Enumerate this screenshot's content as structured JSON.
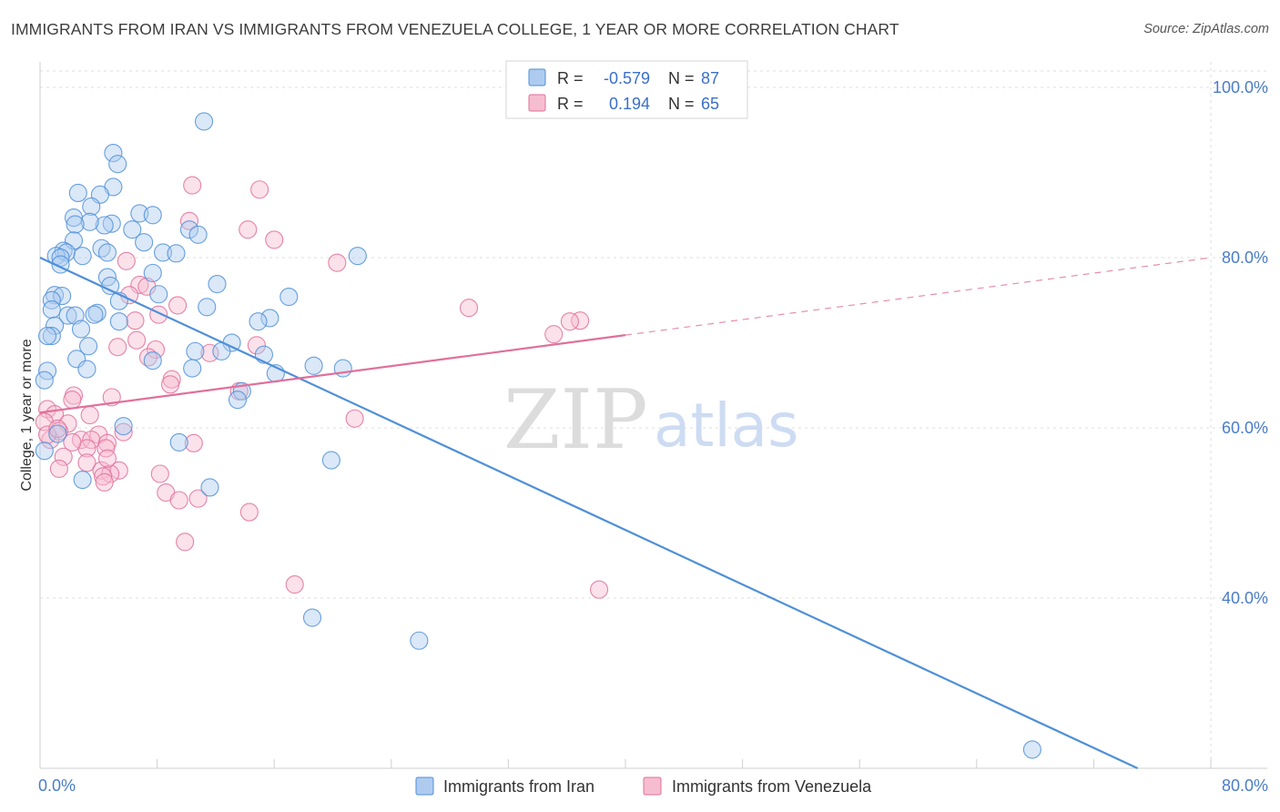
{
  "header": {
    "title": "IMMIGRANTS FROM IRAN VS IMMIGRANTS FROM VENEZUELA COLLEGE, 1 YEAR OR MORE CORRELATION CHART",
    "source": "Source: ZipAtlas.com"
  },
  "watermark": {
    "zip": "ZIP",
    "atlas": "atlas"
  },
  "legend_box": {
    "rows": [
      {
        "r_label": "R =",
        "r_value": "-0.579",
        "n_label": "N =",
        "n_value": "87"
      },
      {
        "r_label": "R =",
        "r_value": "0.194",
        "n_label": "N =",
        "n_value": "65"
      }
    ]
  },
  "colors": {
    "iran": "#4f8fd8",
    "iran_fill": "#aecbef",
    "venezuela": "#e0709a",
    "venezuela_fill": "#f6bdd0",
    "grid": "#dedede",
    "tick_text": "#4a7cc9"
  },
  "chart_data": {
    "type": "scatter",
    "title": "IMMIGRANTS FROM IRAN VS IMMIGRANTS FROM VENEZUELA COLLEGE, 1 YEAR OR MORE CORRELATION CHART",
    "xlabel": "",
    "ylabel": "College, 1 year or more",
    "xlim": [
      0,
      80
    ],
    "ylim": [
      20,
      103
    ],
    "x_tick_labels": [
      "0.0%",
      "80.0%"
    ],
    "y_tick_labels": [
      "100.0%",
      "80.0%",
      "60.0%",
      "40.0%"
    ],
    "y_ticks": [
      100,
      80,
      60,
      40
    ],
    "grid": true,
    "legend_position": "bottom",
    "series": [
      {
        "name": "Immigrants from Iran",
        "color": "#4f8fd8",
        "R": -0.579,
        "N": 87,
        "trend": {
          "x0": 0,
          "y0": 80.0,
          "x1": 80,
          "y1": 16.0,
          "solid_until": 80
        },
        "points": [
          [
            11.2,
            96.0
          ],
          [
            5.0,
            92.3
          ],
          [
            5.3,
            91.0
          ],
          [
            5.0,
            88.3
          ],
          [
            2.6,
            87.6
          ],
          [
            4.1,
            87.4
          ],
          [
            3.5,
            86.0
          ],
          [
            6.8,
            85.2
          ],
          [
            7.7,
            85.0
          ],
          [
            2.3,
            84.7
          ],
          [
            4.9,
            84.0
          ],
          [
            4.4,
            83.8
          ],
          [
            3.4,
            84.2
          ],
          [
            2.4,
            83.9
          ],
          [
            6.3,
            83.3
          ],
          [
            10.2,
            83.3
          ],
          [
            10.8,
            82.7
          ],
          [
            2.3,
            82.0
          ],
          [
            7.1,
            81.8
          ],
          [
            4.2,
            81.1
          ],
          [
            1.6,
            80.8
          ],
          [
            1.8,
            80.6
          ],
          [
            4.6,
            80.6
          ],
          [
            8.4,
            80.6
          ],
          [
            9.3,
            80.5
          ],
          [
            2.9,
            80.2
          ],
          [
            1.1,
            80.2
          ],
          [
            1.4,
            80.0
          ],
          [
            21.7,
            80.2
          ],
          [
            1.4,
            79.2
          ],
          [
            7.7,
            78.2
          ],
          [
            4.6,
            77.7
          ],
          [
            12.1,
            76.9
          ],
          [
            4.8,
            76.7
          ],
          [
            8.1,
            75.7
          ],
          [
            17.0,
            75.4
          ],
          [
            1.0,
            75.6
          ],
          [
            1.5,
            75.5
          ],
          [
            0.8,
            75.0
          ],
          [
            5.4,
            74.9
          ],
          [
            11.4,
            74.2
          ],
          [
            0.8,
            73.9
          ],
          [
            1.9,
            73.2
          ],
          [
            2.4,
            73.2
          ],
          [
            3.9,
            73.5
          ],
          [
            3.7,
            73.3
          ],
          [
            15.7,
            72.9
          ],
          [
            14.9,
            72.5
          ],
          [
            5.4,
            72.5
          ],
          [
            1.0,
            72.0
          ],
          [
            2.8,
            71.6
          ],
          [
            0.8,
            70.8
          ],
          [
            0.5,
            70.8
          ],
          [
            13.1,
            70.0
          ],
          [
            3.3,
            69.6
          ],
          [
            12.4,
            69.0
          ],
          [
            10.6,
            69.0
          ],
          [
            15.3,
            68.6
          ],
          [
            2.5,
            68.1
          ],
          [
            7.7,
            67.9
          ],
          [
            18.7,
            67.3
          ],
          [
            20.7,
            67.0
          ],
          [
            3.2,
            66.9
          ],
          [
            10.4,
            67.0
          ],
          [
            0.5,
            66.7
          ],
          [
            16.1,
            66.4
          ],
          [
            0.3,
            65.6
          ],
          [
            13.8,
            64.3
          ],
          [
            13.5,
            63.3
          ],
          [
            1.2,
            59.3
          ],
          [
            5.7,
            60.2
          ],
          [
            9.5,
            58.3
          ],
          [
            19.9,
            56.2
          ],
          [
            0.3,
            57.3
          ],
          [
            2.9,
            53.9
          ],
          [
            11.6,
            53.0
          ],
          [
            18.6,
            37.7
          ],
          [
            25.9,
            35.0
          ],
          [
            67.8,
            22.2
          ]
        ]
      },
      {
        "name": "Immigrants from Venezuela",
        "color": "#e0709a",
        "R": 0.194,
        "N": 65,
        "trend": {
          "x0": 0,
          "y0": 61.8,
          "x1": 80,
          "y1": 80.0,
          "solid_until": 40
        },
        "points": [
          [
            10.4,
            88.5
          ],
          [
            15.0,
            88.0
          ],
          [
            10.2,
            84.3
          ],
          [
            14.2,
            83.3
          ],
          [
            16.0,
            82.1
          ],
          [
            20.3,
            79.4
          ],
          [
            5.9,
            79.6
          ],
          [
            6.8,
            76.8
          ],
          [
            7.3,
            76.6
          ],
          [
            6.1,
            75.6
          ],
          [
            9.4,
            74.4
          ],
          [
            29.3,
            74.1
          ],
          [
            8.1,
            73.3
          ],
          [
            6.5,
            72.6
          ],
          [
            36.9,
            72.6
          ],
          [
            36.2,
            72.5
          ],
          [
            35.1,
            71.0
          ],
          [
            6.6,
            70.3
          ],
          [
            14.8,
            69.7
          ],
          [
            5.3,
            69.5
          ],
          [
            7.9,
            69.2
          ],
          [
            11.6,
            68.8
          ],
          [
            7.4,
            68.3
          ],
          [
            9.0,
            65.7
          ],
          [
            8.9,
            65.1
          ],
          [
            13.6,
            64.3
          ],
          [
            4.9,
            63.6
          ],
          [
            2.3,
            63.8
          ],
          [
            2.2,
            63.3
          ],
          [
            0.5,
            62.2
          ],
          [
            1.0,
            61.6
          ],
          [
            21.5,
            61.1
          ],
          [
            3.4,
            61.5
          ],
          [
            1.9,
            60.5
          ],
          [
            0.3,
            60.7
          ],
          [
            1.3,
            59.6
          ],
          [
            4.0,
            59.2
          ],
          [
            5.7,
            59.5
          ],
          [
            2.8,
            58.6
          ],
          [
            3.5,
            58.6
          ],
          [
            0.7,
            58.6
          ],
          [
            0.5,
            59.2
          ],
          [
            1.2,
            59.9
          ],
          [
            10.5,
            58.2
          ],
          [
            4.6,
            58.2
          ],
          [
            4.5,
            57.6
          ],
          [
            3.2,
            57.6
          ],
          [
            1.6,
            56.6
          ],
          [
            3.2,
            55.9
          ],
          [
            1.3,
            55.2
          ],
          [
            4.2,
            55.0
          ],
          [
            5.4,
            55.0
          ],
          [
            4.8,
            54.6
          ],
          [
            8.2,
            54.6
          ],
          [
            4.3,
            54.3
          ],
          [
            4.4,
            53.6
          ],
          [
            8.6,
            52.4
          ],
          [
            10.8,
            51.7
          ],
          [
            9.5,
            51.5
          ],
          [
            14.3,
            50.1
          ],
          [
            9.9,
            46.6
          ],
          [
            17.4,
            41.6
          ],
          [
            38.2,
            41.0
          ],
          [
            4.6,
            56.4
          ],
          [
            2.2,
            58.3
          ]
        ]
      }
    ]
  },
  "bottom_legend": {
    "items": [
      {
        "label": "Immigrants from Iran"
      },
      {
        "label": "Immigrants from Venezuela"
      }
    ]
  }
}
